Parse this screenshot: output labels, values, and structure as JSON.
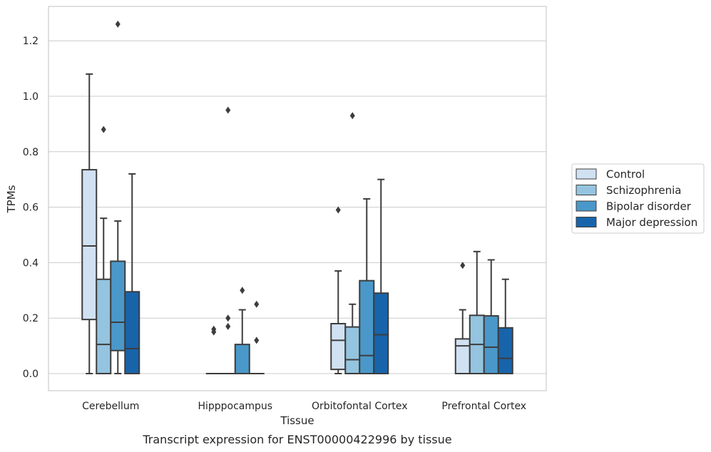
{
  "caption": "Transcript expression for ENST00000422996 by tissue",
  "chart_data": {
    "type": "box",
    "xlabel": "Tissue",
    "ylabel": "TPMs",
    "ylim": [
      -0.06,
      1.33
    ],
    "yticks": [
      0.0,
      0.2,
      0.4,
      0.6,
      0.8,
      1.0,
      1.2
    ],
    "ytick_labels": [
      "0.0",
      "0.2",
      "0.4",
      "0.6",
      "0.8",
      "1.0",
      "1.2"
    ],
    "categories": [
      "Cerebellum",
      "Hipppocampus",
      "Orbitofontal Cortex",
      "Prefrontal Cortex"
    ],
    "grid": "horizontal",
    "legend_position": "right",
    "series": [
      {
        "name": "Control",
        "color": "#d0e1f2",
        "boxes": [
          {
            "whislo": 0.0,
            "q1": 0.195,
            "med": 0.46,
            "q3": 0.735,
            "whishi": 1.08,
            "fliers": []
          },
          {
            "whislo": 0.0,
            "q1": 0.0,
            "med": 0.0,
            "q3": 0.0,
            "whishi": 0.0,
            "fliers": [
              0.15,
              0.16
            ]
          },
          {
            "whislo": 0.0,
            "q1": 0.015,
            "med": 0.12,
            "q3": 0.18,
            "whishi": 0.37,
            "fliers": [
              0.59
            ]
          },
          {
            "whislo": 0.0,
            "q1": 0.0,
            "med": 0.1,
            "q3": 0.125,
            "whishi": 0.23,
            "fliers": [
              0.39
            ]
          }
        ]
      },
      {
        "name": "Schizophrenia",
        "color": "#94c4df",
        "boxes": [
          {
            "whislo": 0.0,
            "q1": 0.0,
            "med": 0.105,
            "q3": 0.34,
            "whishi": 0.56,
            "fliers": [
              0.88
            ]
          },
          {
            "whislo": 0.0,
            "q1": 0.0,
            "med": 0.0,
            "q3": 0.0,
            "whishi": 0.0,
            "fliers": [
              0.17,
              0.2,
              0.95
            ]
          },
          {
            "whislo": 0.0,
            "q1": 0.0,
            "med": 0.05,
            "q3": 0.168,
            "whishi": 0.25,
            "fliers": [
              0.93
            ]
          },
          {
            "whislo": 0.0,
            "q1": 0.0,
            "med": 0.105,
            "q3": 0.21,
            "whishi": 0.44,
            "fliers": []
          }
        ]
      },
      {
        "name": "Bipolar disorder",
        "color": "#4a98c9",
        "boxes": [
          {
            "whislo": 0.0,
            "q1": 0.083,
            "med": 0.185,
            "q3": 0.405,
            "whishi": 0.55,
            "fliers": [
              1.26
            ]
          },
          {
            "whislo": 0.0,
            "q1": 0.0,
            "med": 0.0,
            "q3": 0.105,
            "whishi": 0.23,
            "fliers": [
              0.3
            ]
          },
          {
            "whislo": 0.0,
            "q1": 0.0,
            "med": 0.065,
            "q3": 0.335,
            "whishi": 0.63,
            "fliers": []
          },
          {
            "whislo": 0.0,
            "q1": 0.0,
            "med": 0.095,
            "q3": 0.208,
            "whishi": 0.41,
            "fliers": []
          }
        ]
      },
      {
        "name": "Major depression",
        "color": "#1764ab",
        "boxes": [
          {
            "whislo": 0.0,
            "q1": 0.0,
            "med": 0.09,
            "q3": 0.295,
            "whishi": 0.72,
            "fliers": []
          },
          {
            "whislo": 0.0,
            "q1": 0.0,
            "med": 0.0,
            "q3": 0.0,
            "whishi": 0.0,
            "fliers": [
              0.12,
              0.25
            ]
          },
          {
            "whislo": 0.0,
            "q1": 0.0,
            "med": 0.14,
            "q3": 0.29,
            "whishi": 0.7,
            "fliers": []
          },
          {
            "whislo": 0.0,
            "q1": 0.0,
            "med": 0.055,
            "q3": 0.165,
            "whishi": 0.34,
            "fliers": []
          }
        ]
      }
    ]
  }
}
